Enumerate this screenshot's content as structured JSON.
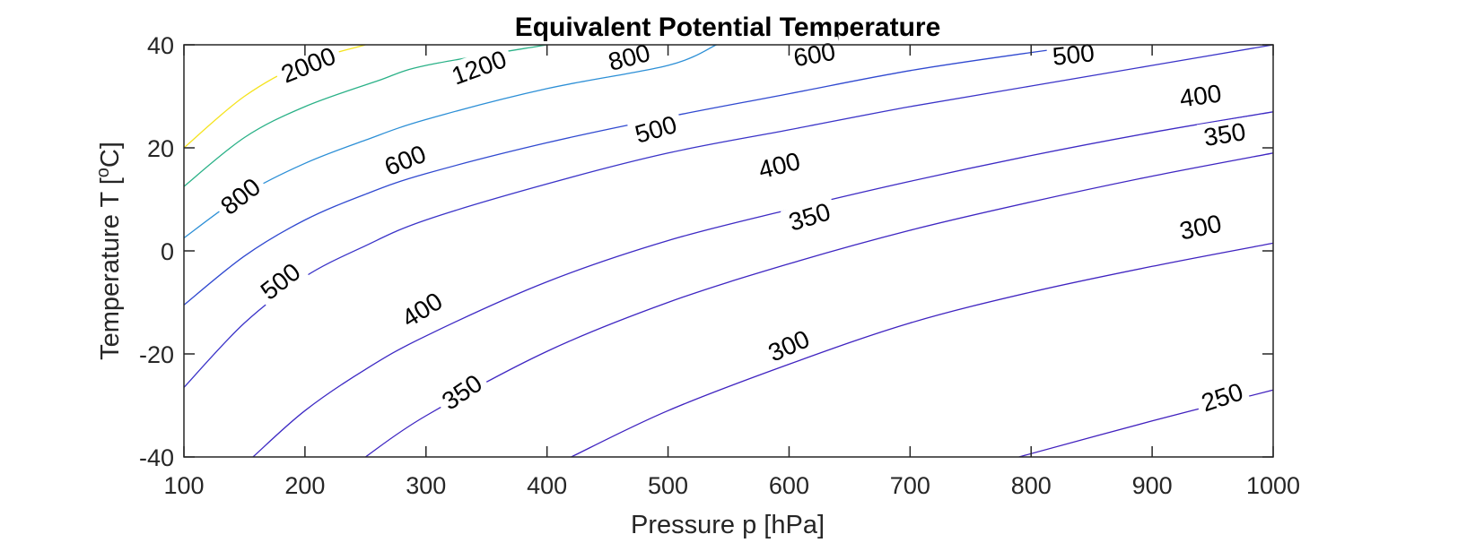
{
  "chart_data": {
    "type": "contour",
    "title": "Equivalent Potential Temperature",
    "xlabel": "Pressure p [hPa]",
    "ylabel_main": "Temperature T [",
    "ylabel_sup": "o",
    "ylabel_end": "C]",
    "xlim": [
      100,
      1000
    ],
    "ylim": [
      -40,
      40
    ],
    "xticks": [
      "100",
      "200",
      "300",
      "400",
      "500",
      "600",
      "700",
      "800",
      "900",
      "1000"
    ],
    "yticks": [
      "-40",
      "-20",
      "0",
      "20",
      "40"
    ],
    "levels": [
      {
        "value": 2000,
        "color": "#f5e31e",
        "points": [
          [
            100,
            20
          ],
          [
            150,
            30
          ],
          [
            200,
            36.5
          ],
          [
            250,
            40
          ]
        ]
      },
      {
        "value": 1200,
        "color": "#2ab187",
        "points": [
          [
            100,
            12.5
          ],
          [
            150,
            22
          ],
          [
            200,
            28
          ],
          [
            260,
            33
          ],
          [
            300,
            36
          ],
          [
            400,
            40
          ]
        ]
      },
      {
        "value": 800,
        "color": "#2c8fd6",
        "points": [
          [
            100,
            2.5
          ],
          [
            150,
            11
          ],
          [
            200,
            17
          ],
          [
            250,
            21.5
          ],
          [
            300,
            25.5
          ],
          [
            400,
            31.5
          ],
          [
            500,
            36
          ],
          [
            540,
            40
          ]
        ]
      },
      {
        "value": 600,
        "color": "#3049d0",
        "points": [
          [
            100,
            -10.5
          ],
          [
            150,
            -1
          ],
          [
            200,
            6
          ],
          [
            250,
            11
          ],
          [
            300,
            15
          ],
          [
            400,
            21
          ],
          [
            500,
            26
          ],
          [
            600,
            30.5
          ],
          [
            700,
            35
          ],
          [
            800,
            38.5
          ],
          [
            850,
            40
          ]
        ]
      },
      {
        "value": 500,
        "color": "#3a33c8",
        "points": [
          [
            100,
            -26.5
          ],
          [
            150,
            -14
          ],
          [
            200,
            -5
          ],
          [
            250,
            1
          ],
          [
            300,
            6
          ],
          [
            400,
            13
          ],
          [
            500,
            19
          ],
          [
            600,
            23.5
          ],
          [
            700,
            28
          ],
          [
            800,
            32
          ],
          [
            900,
            36
          ],
          [
            1000,
            40
          ]
        ]
      },
      {
        "value": 400,
        "color": "#3d2ac4",
        "points": [
          [
            157,
            -40
          ],
          [
            200,
            -31
          ],
          [
            250,
            -23
          ],
          [
            300,
            -16.5
          ],
          [
            400,
            -6
          ],
          [
            500,
            2
          ],
          [
            600,
            8
          ],
          [
            700,
            13.5
          ],
          [
            800,
            18.5
          ],
          [
            900,
            23
          ],
          [
            1000,
            27
          ]
        ]
      },
      {
        "value": 350,
        "color": "#3e26c2",
        "points": [
          [
            250,
            -40
          ],
          [
            300,
            -32
          ],
          [
            400,
            -19.5
          ],
          [
            500,
            -10
          ],
          [
            600,
            -2.5
          ],
          [
            700,
            4
          ],
          [
            800,
            9.5
          ],
          [
            900,
            14.5
          ],
          [
            1000,
            19
          ]
        ]
      },
      {
        "value": 300,
        "color": "#3f23c0",
        "points": [
          [
            420,
            -40
          ],
          [
            500,
            -31
          ],
          [
            600,
            -22
          ],
          [
            700,
            -14
          ],
          [
            800,
            -8
          ],
          [
            900,
            -3
          ],
          [
            1000,
            1.5
          ]
        ]
      },
      {
        "value": 250,
        "color": "#4020be",
        "points": [
          [
            790,
            -40
          ],
          [
            900,
            -33
          ],
          [
            1000,
            -27
          ]
        ]
      }
    ],
    "contour_labels": [
      {
        "text": "2000",
        "x": 203,
        "y": 36,
        "angle": -22
      },
      {
        "text": "1200",
        "x": 344,
        "y": 35.5,
        "angle": -20
      },
      {
        "text": "800",
        "x": 468,
        "y": 37.5,
        "angle": -15
      },
      {
        "text": "600",
        "x": 621,
        "y": 38,
        "angle": -10
      },
      {
        "text": "500",
        "x": 835,
        "y": 38,
        "angle": -6
      },
      {
        "text": "400",
        "x": 940,
        "y": 30,
        "angle": -8
      },
      {
        "text": "800",
        "x": 147,
        "y": 10.5,
        "angle": -38
      },
      {
        "text": "600",
        "x": 283,
        "y": 17.5,
        "angle": -22
      },
      {
        "text": "500",
        "x": 490,
        "y": 23.5,
        "angle": -16
      },
      {
        "text": "400",
        "x": 592,
        "y": 16.5,
        "angle": -14
      },
      {
        "text": "350",
        "x": 960,
        "y": 22.5,
        "angle": -9
      },
      {
        "text": "500",
        "x": 180,
        "y": -6,
        "angle": -38
      },
      {
        "text": "400",
        "x": 297,
        "y": -11.5,
        "angle": -32
      },
      {
        "text": "350",
        "x": 617,
        "y": 6.5,
        "angle": -17
      },
      {
        "text": "300",
        "x": 940,
        "y": 4.5,
        "angle": -12
      },
      {
        "text": "350",
        "x": 330,
        "y": -27.5,
        "angle": -34
      },
      {
        "text": "300",
        "x": 600,
        "y": -18.5,
        "angle": -24
      },
      {
        "text": "250",
        "x": 958,
        "y": -28.5,
        "angle": -18
      }
    ]
  }
}
